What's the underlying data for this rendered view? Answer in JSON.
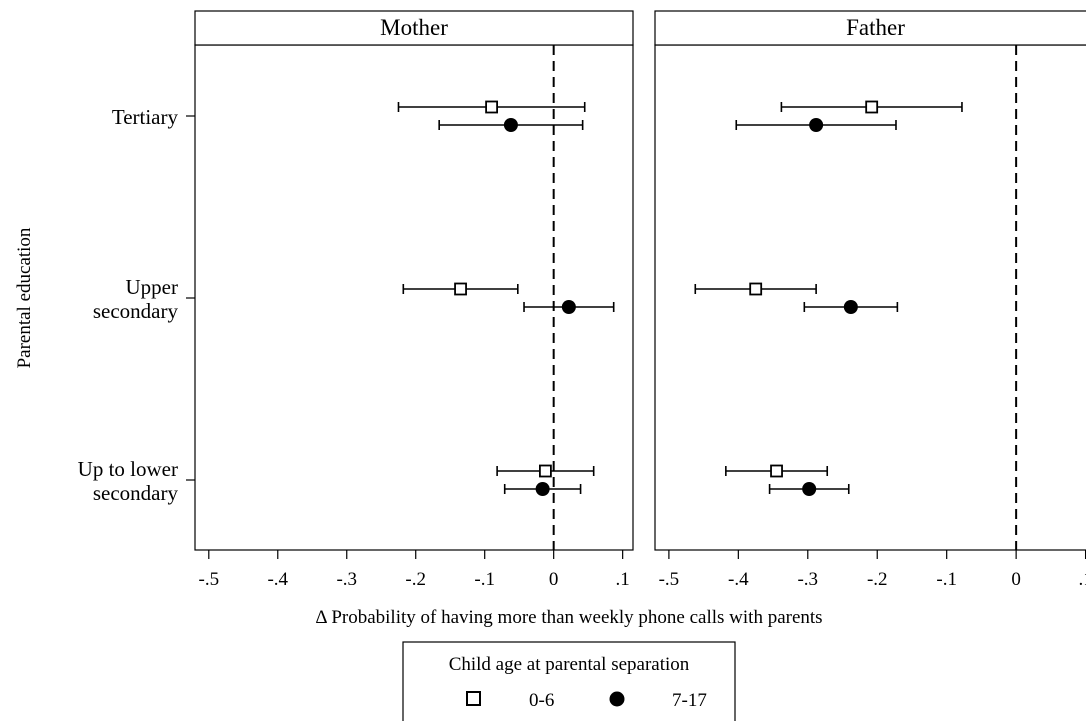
{
  "chart_data": {
    "type": "scatter",
    "subtype": "coefficient-plot-with-confidence-intervals",
    "ylabel": "Parental education",
    "xlabel": "Δ Probability of having more than weekly phone calls with parents",
    "categories": [
      "Tertiary",
      "Upper secondary",
      "Up to lower secondary"
    ],
    "category_lines": [
      [
        "Tertiary"
      ],
      [
        "Upper",
        "secondary"
      ],
      [
        "Up to lower",
        "secondary"
      ]
    ],
    "xlim": [
      -0.52,
      0.115
    ],
    "xticks": [
      -0.5,
      -0.4,
      -0.3,
      -0.2,
      -0.1,
      0,
      0.1
    ],
    "xtick_labels": [
      "-.5",
      "-.4",
      "-.3",
      "-.2",
      "-.1",
      "0",
      ".1"
    ],
    "reference_line_x": 0,
    "grid": false,
    "legend": {
      "title": "Child age at parental separation",
      "placement": "bottom-center",
      "entries": [
        {
          "label": "0-6",
          "marker": "hollow-square"
        },
        {
          "label": "7-17",
          "marker": "filled-circle"
        }
      ]
    },
    "panels": [
      {
        "title": "Mother",
        "series": [
          {
            "name": "0-6",
            "marker": "hollow-square",
            "points": [
              {
                "category": "Tertiary",
                "estimate": -0.09,
                "ci": [
                  -0.225,
                  0.045
                ]
              },
              {
                "category": "Upper secondary",
                "estimate": -0.135,
                "ci": [
                  -0.218,
                  -0.052
                ]
              },
              {
                "category": "Up to lower secondary",
                "estimate": -0.012,
                "ci": [
                  -0.082,
                  0.058
                ]
              }
            ]
          },
          {
            "name": "7-17",
            "marker": "filled-circle",
            "points": [
              {
                "category": "Tertiary",
                "estimate": -0.062,
                "ci": [
                  -0.166,
                  0.042
                ]
              },
              {
                "category": "Upper secondary",
                "estimate": 0.022,
                "ci": [
                  -0.043,
                  0.087
                ]
              },
              {
                "category": "Up to lower secondary",
                "estimate": -0.016,
                "ci": [
                  -0.071,
                  0.039
                ]
              }
            ]
          }
        ]
      },
      {
        "title": "Father",
        "series": [
          {
            "name": "0-6",
            "marker": "hollow-square",
            "points": [
              {
                "category": "Tertiary",
                "estimate": -0.208,
                "ci": [
                  -0.338,
                  -0.078
                ]
              },
              {
                "category": "Upper secondary",
                "estimate": -0.375,
                "ci": [
                  -0.462,
                  -0.288
                ]
              },
              {
                "category": "Up to lower secondary",
                "estimate": -0.345,
                "ci": [
                  -0.418,
                  -0.272
                ]
              }
            ]
          },
          {
            "name": "7-17",
            "marker": "filled-circle",
            "points": [
              {
                "category": "Tertiary",
                "estimate": -0.288,
                "ci": [
                  -0.403,
                  -0.173
                ]
              },
              {
                "category": "Upper secondary",
                "estimate": -0.238,
                "ci": [
                  -0.305,
                  -0.171
                ]
              },
              {
                "category": "Up to lower secondary",
                "estimate": -0.298,
                "ci": [
                  -0.355,
                  -0.241
                ]
              }
            ]
          }
        ]
      }
    ]
  }
}
